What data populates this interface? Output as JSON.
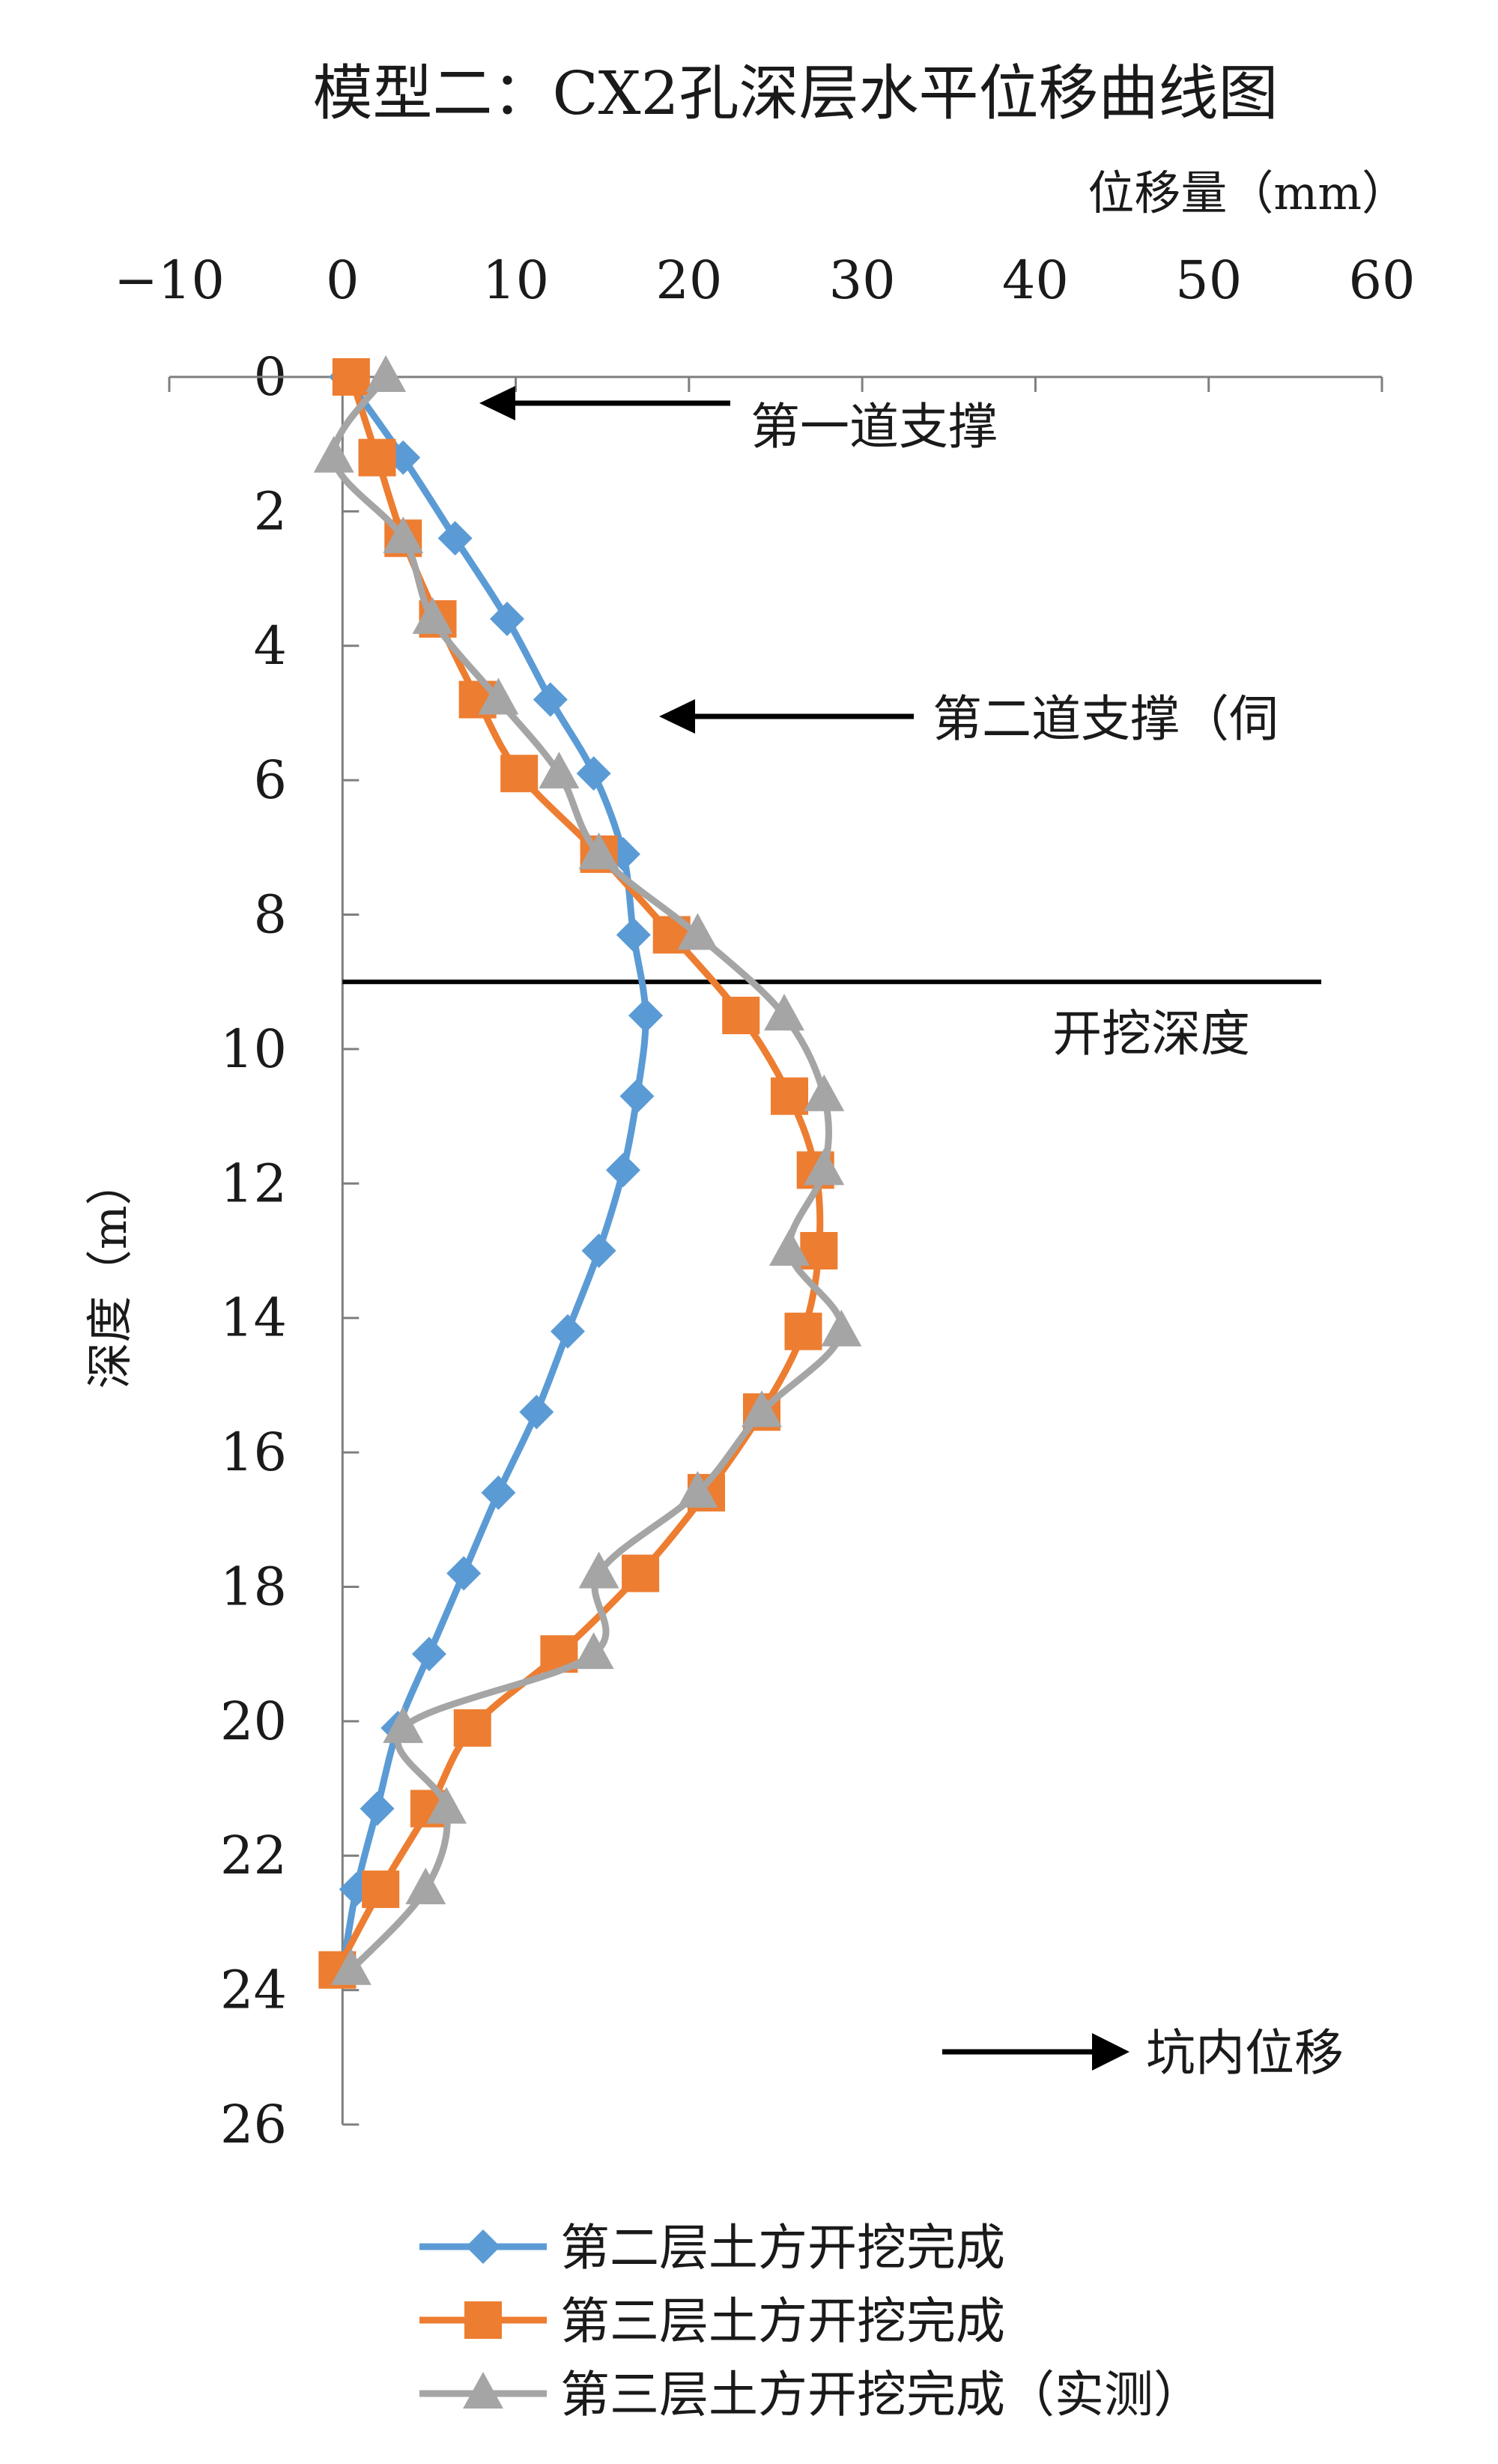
{
  "chart_data": {
    "type": "line",
    "title": "模型二：CX2孔深层水平位移曲线图",
    "xlabel": "位移量（mm）",
    "ylabel": "深度（m）",
    "xlim": [
      -10,
      60
    ],
    "ylim": [
      0,
      26
    ],
    "y_inverted": true,
    "x_axis_position": "top",
    "x_ticks": [
      -10,
      0,
      10,
      20,
      30,
      40,
      50,
      60
    ],
    "x_tick_labels": [
      "−10",
      "0",
      "10",
      "20",
      "30",
      "40",
      "50",
      "60"
    ],
    "y_ticks": [
      0,
      2,
      4,
      6,
      8,
      10,
      12,
      14,
      16,
      18,
      20,
      22,
      24,
      26
    ],
    "y_tick_labels": [
      "0",
      "2",
      "4",
      "6",
      "8",
      "10",
      "12",
      "14",
      "16",
      "18",
      "20",
      "22",
      "24",
      "26"
    ],
    "grid": false,
    "legend_position": "bottom",
    "series": [
      {
        "name": "第二层土方开挖完成",
        "color": "#5B9BD5",
        "marker": "diamond",
        "points": [
          [
            0.2,
            0
          ],
          [
            3.5,
            1.2
          ],
          [
            6.5,
            2.4
          ],
          [
            9.5,
            3.6
          ],
          [
            12,
            4.8
          ],
          [
            14.5,
            5.9
          ],
          [
            16.2,
            7.1
          ],
          [
            16.8,
            8.3
          ],
          [
            17.5,
            9.5
          ],
          [
            17,
            10.7
          ],
          [
            16.2,
            11.8
          ],
          [
            14.8,
            13
          ],
          [
            13,
            14.2
          ],
          [
            11.2,
            15.4
          ],
          [
            9,
            16.6
          ],
          [
            7,
            17.8
          ],
          [
            5,
            19
          ],
          [
            3.2,
            20.1
          ],
          [
            2,
            21.3
          ],
          [
            0.8,
            22.5
          ],
          [
            0,
            23.7
          ]
        ]
      },
      {
        "name": "第三层土方开挖完成",
        "color": "#ED7D31",
        "marker": "square",
        "points": [
          [
            0.5,
            0
          ],
          [
            2,
            1.2
          ],
          [
            3.5,
            2.4
          ],
          [
            5.5,
            3.6
          ],
          [
            7.8,
            4.8
          ],
          [
            10.2,
            5.9
          ],
          [
            14.8,
            7.1
          ],
          [
            19,
            8.3
          ],
          [
            23,
            9.5
          ],
          [
            25.8,
            10.7
          ],
          [
            27.3,
            11.8
          ],
          [
            27.5,
            13
          ],
          [
            26.6,
            14.2
          ],
          [
            24.2,
            15.4
          ],
          [
            21,
            16.6
          ],
          [
            17.2,
            17.8
          ],
          [
            12.5,
            19
          ],
          [
            7.5,
            20.1
          ],
          [
            5,
            21.3
          ],
          [
            2.2,
            22.5
          ],
          [
            -0.3,
            23.7
          ]
        ]
      },
      {
        "name": "第三层土方开挖完成（实测）",
        "color": "#A5A5A5",
        "marker": "triangle",
        "points": [
          [
            2.5,
            0
          ],
          [
            -0.5,
            1.2
          ],
          [
            3.5,
            2.4
          ],
          [
            5.2,
            3.6
          ],
          [
            9,
            4.8
          ],
          [
            12.5,
            5.9
          ],
          [
            14.8,
            7.1
          ],
          [
            20.5,
            8.3
          ],
          [
            25.5,
            9.5
          ],
          [
            27.8,
            10.7
          ],
          [
            27.8,
            11.8
          ],
          [
            25.8,
            13
          ],
          [
            28.8,
            14.2
          ],
          [
            24.2,
            15.4
          ],
          [
            20.5,
            16.6
          ],
          [
            14.8,
            17.8
          ],
          [
            14.5,
            19
          ],
          [
            3.5,
            20.1
          ],
          [
            6,
            21.3
          ],
          [
            4.8,
            22.5
          ],
          [
            0.5,
            23.7
          ]
        ]
      }
    ],
    "reference_line": {
      "y": 9.0,
      "x_from": 0,
      "x_to": 56.5
    },
    "annotations": [
      {
        "text": "第一道支撑",
        "arrow": "left",
        "y": 0.4,
        "x_tip": 8.0
      },
      {
        "text": "第二道支撑（伺",
        "arrow": "left",
        "y": 5.0,
        "x_tip": 18.5
      },
      {
        "text": "开挖深度"
      },
      {
        "text": "坑内位移",
        "arrow": "right"
      }
    ]
  }
}
